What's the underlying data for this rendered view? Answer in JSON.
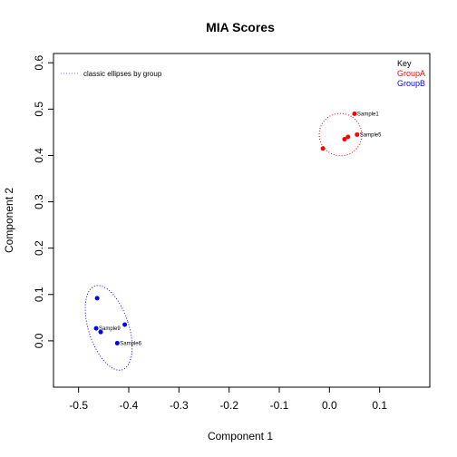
{
  "chart_data": {
    "type": "scatter",
    "title": "MIA Scores",
    "xlabel": "Component 1",
    "ylabel": "Component 2",
    "xlim": [
      -0.55,
      0.2
    ],
    "ylim": [
      -0.1,
      0.62
    ],
    "x_ticks": [
      -0.5,
      -0.4,
      -0.3,
      -0.2,
      -0.1,
      0.0,
      0.1
    ],
    "x_tick_labels": [
      "-0.5",
      "-0.4",
      "-0.3",
      "-0.2",
      "-0.1",
      "0.0",
      "0.1"
    ],
    "y_ticks": [
      0.0,
      0.1,
      0.2,
      0.3,
      0.4,
      0.5,
      0.6
    ],
    "y_tick_labels": [
      "0.0",
      "0.1",
      "0.2",
      "0.3",
      "0.4",
      "0.5",
      "0.6"
    ],
    "grid": false,
    "legend": {
      "placement": "top-left",
      "line_style": "dotted",
      "text": "classic ellipses by group"
    },
    "key": {
      "title": "Key",
      "placement": "top-right",
      "entries": [
        {
          "name": "GroupA",
          "color": "#ff0000"
        },
        {
          "name": "GroupB",
          "color": "#0000ff"
        }
      ]
    },
    "series": [
      {
        "name": "GroupA",
        "color": "#ff0000",
        "points": [
          {
            "x": 0.05,
            "y": 0.49,
            "label": "Sample1"
          },
          {
            "x": 0.055,
            "y": 0.445,
            "label": "Sample5"
          },
          {
            "x": 0.037,
            "y": 0.44,
            "label": ""
          },
          {
            "x": 0.03,
            "y": 0.435,
            "label": ""
          },
          {
            "x": -0.013,
            "y": 0.415,
            "label": ""
          }
        ],
        "ellipse": {
          "cx": 0.022,
          "cy": 0.445,
          "rx": 0.042,
          "ry": 0.046,
          "rotation_deg": -55
        }
      },
      {
        "name": "GroupB",
        "color": "#0000ff",
        "points": [
          {
            "x": -0.463,
            "y": 0.092,
            "label": ""
          },
          {
            "x": -0.408,
            "y": 0.035,
            "label": ""
          },
          {
            "x": -0.465,
            "y": 0.027,
            "label": "Sample9"
          },
          {
            "x": -0.456,
            "y": 0.019,
            "label": ""
          },
          {
            "x": -0.423,
            "y": -0.005,
            "label": "Sample6"
          }
        ],
        "ellipse": {
          "cx": -0.44,
          "cy": 0.028,
          "rx": 0.04,
          "ry": 0.095,
          "rotation_deg": -18
        }
      }
    ]
  }
}
